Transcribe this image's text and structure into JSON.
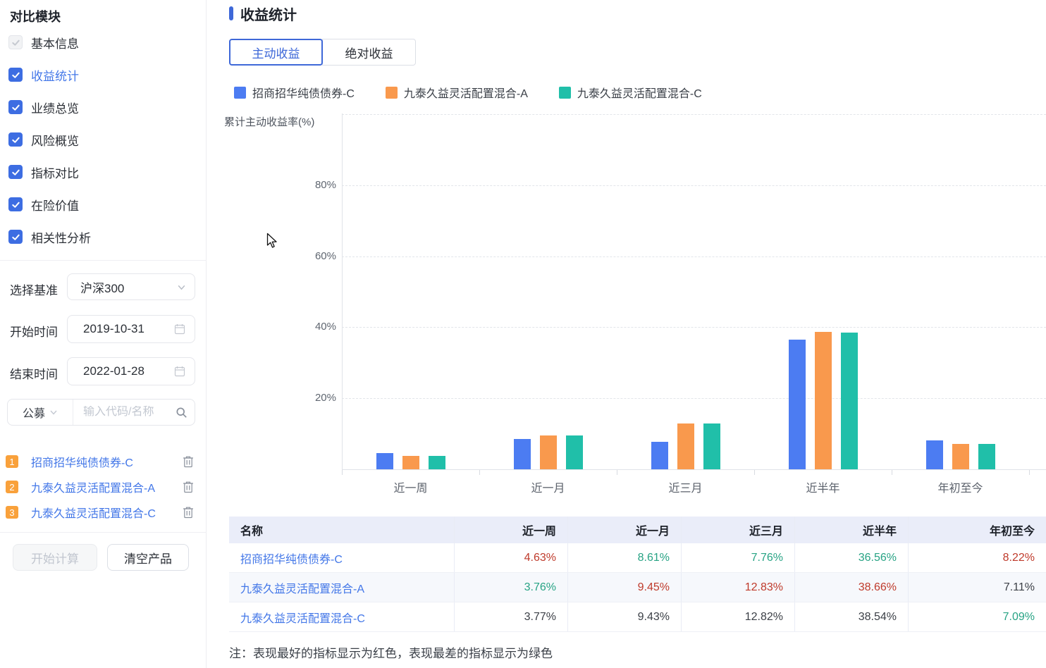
{
  "sidebar": {
    "title": "对比模块",
    "modules": [
      {
        "label": "基本信息",
        "state": "disabled",
        "active": false
      },
      {
        "label": "收益统计",
        "state": "checked",
        "active": true
      },
      {
        "label": "业绩总览",
        "state": "checked",
        "active": false
      },
      {
        "label": "风险概览",
        "state": "checked",
        "active": false
      },
      {
        "label": "指标对比",
        "state": "checked",
        "active": false
      },
      {
        "label": "在险价值",
        "state": "checked",
        "active": false
      },
      {
        "label": "相关性分析",
        "state": "checked",
        "active": false
      }
    ],
    "benchmark": {
      "label": "选择基准",
      "value": "沪深300"
    },
    "start_time": {
      "label": "开始时间",
      "value": "2019-10-31"
    },
    "end_time": {
      "label": "结束时间",
      "value": "2022-01-28"
    },
    "search": {
      "type_value": "公募",
      "placeholder": "输入代码/名称"
    },
    "products": [
      {
        "index": "1",
        "name": "招商招华纯债债券-C"
      },
      {
        "index": "2",
        "name": "九泰久益灵活配置混合-A"
      },
      {
        "index": "3",
        "name": "九泰久益灵活配置混合-C"
      }
    ],
    "calc_button": "开始计算",
    "clear_button": "清空产品"
  },
  "main": {
    "section_title": "收益统计",
    "tabs": [
      {
        "label": "主动收益",
        "active": true
      },
      {
        "label": "绝对收益",
        "active": false
      }
    ],
    "note": "注：表现最好的指标显示为红色，表现最差的指标显示为绿色"
  },
  "chart_data": {
    "type": "bar",
    "title": "",
    "ylabel": "累计主动收益率(%)",
    "categories": [
      "近一周",
      "近一月",
      "近三月",
      "近半年",
      "年初至今"
    ],
    "series": [
      {
        "name": "招商招华纯债债券-C",
        "color": "#4c7cf2",
        "values": [
          4.63,
          8.61,
          7.76,
          36.56,
          8.22
        ]
      },
      {
        "name": "九泰久益灵活配置混合-A",
        "color": "#f9994d",
        "values": [
          3.76,
          9.45,
          12.83,
          38.66,
          7.11
        ]
      },
      {
        "name": "九泰久益灵活配置混合-C",
        "color": "#20bfa9",
        "values": [
          3.77,
          9.43,
          12.82,
          38.54,
          7.09
        ]
      }
    ],
    "ylim": [
      0,
      100
    ],
    "ytick_step": 20,
    "ytick_labels": [
      "20%",
      "40%",
      "60%",
      "80%"
    ],
    "grid": "dashed-horizontal",
    "legend_position": "top"
  },
  "table": {
    "columns": [
      "名称",
      "近一周",
      "近一月",
      "近三月",
      "近半年",
      "年初至今"
    ],
    "rows": [
      {
        "name": "招商招华纯债债券-C",
        "values": [
          "4.63%",
          "8.61%",
          "7.76%",
          "36.56%",
          "8.22%"
        ],
        "colors": [
          "red",
          "green",
          "green",
          "green",
          "red"
        ]
      },
      {
        "name": "九泰久益灵活配置混合-A",
        "values": [
          "3.76%",
          "9.45%",
          "12.83%",
          "38.66%",
          "7.11%"
        ],
        "colors": [
          "green",
          "red",
          "red",
          "red",
          "neutral"
        ]
      },
      {
        "name": "九泰久益灵活配置混合-C",
        "values": [
          "3.77%",
          "9.43%",
          "12.82%",
          "38.54%",
          "7.09%"
        ],
        "colors": [
          "neutral",
          "neutral",
          "neutral",
          "neutral",
          "green"
        ]
      }
    ]
  },
  "colors": {
    "primary_blue": "#3e68d8",
    "link_blue": "#4377e8",
    "checkbox_blue": "#3d6de2",
    "badge_orange": "#f9a13b",
    "best_red": "#bf3a2b",
    "worst_green": "#27a384",
    "neutral_text": "#3b3f46"
  }
}
